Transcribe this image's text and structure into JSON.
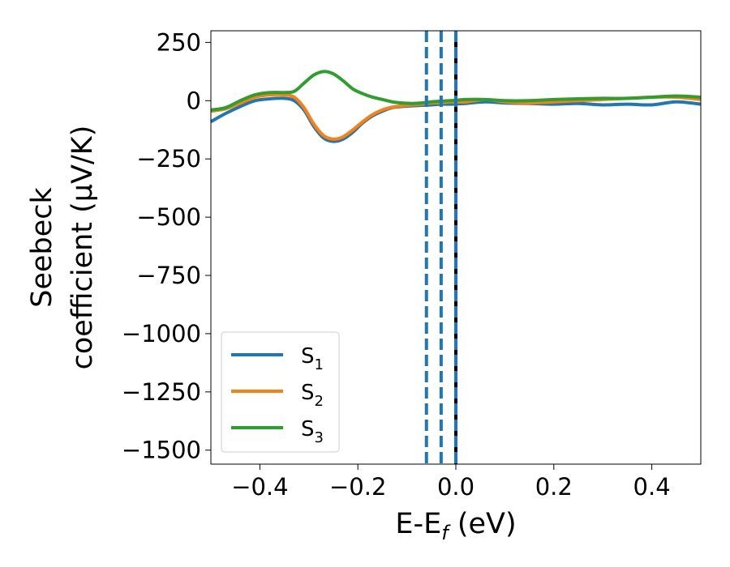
{
  "chart_data": {
    "type": "line",
    "title": "",
    "xlabel": "E-E",
    "xlabel_sub": "f",
    "xlabel_unit": " (eV)",
    "ylabel_line1": "Seebeck",
    "ylabel_line2": "coefficient  (μV/K)",
    "xlim": [
      -0.5,
      0.5
    ],
    "ylim": [
      -1560,
      300
    ],
    "xticks": [
      -0.4,
      -0.2,
      0.0,
      0.2,
      0.4
    ],
    "xtick_labels": [
      "−0.4",
      "−0.2",
      "0.0",
      "0.2",
      "0.4"
    ],
    "yticks": [
      250,
      0,
      -250,
      -500,
      -750,
      -1000,
      -1250,
      -1500
    ],
    "ytick_labels": [
      "250",
      "0",
      "−250",
      "−500",
      "−750",
      "−1000",
      "−1250",
      "−1500"
    ],
    "grid": false,
    "legend_position": "lower-left",
    "series": [
      {
        "name": "S",
        "name_sub": "1",
        "color": "#1f77b4",
        "x": [
          -0.5,
          -0.47,
          -0.44,
          -0.41,
          -0.38,
          -0.35,
          -0.33,
          -0.31,
          -0.29,
          -0.27,
          -0.25,
          -0.23,
          -0.21,
          -0.19,
          -0.17,
          -0.15,
          -0.13,
          -0.11,
          -0.09,
          -0.07,
          -0.05,
          -0.03,
          -0.01,
          0.02,
          0.06,
          0.1,
          0.15,
          0.2,
          0.25,
          0.3,
          0.35,
          0.4,
          0.45,
          0.5
        ],
        "y": [
          -90,
          -55,
          -25,
          0,
          8,
          10,
          0,
          -40,
          -110,
          -160,
          -175,
          -165,
          -135,
          -95,
          -65,
          -45,
          -30,
          -25,
          -22,
          -20,
          -18,
          -15,
          -15,
          -12,
          -5,
          -10,
          -12,
          -15,
          -12,
          -18,
          -15,
          -18,
          -5,
          -15
        ]
      },
      {
        "name": "S",
        "name_sub": "2",
        "color": "#ff7f0e",
        "x": [
          -0.5,
          -0.47,
          -0.44,
          -0.41,
          -0.38,
          -0.35,
          -0.33,
          -0.31,
          -0.29,
          -0.27,
          -0.25,
          -0.23,
          -0.21,
          -0.19,
          -0.17,
          -0.15,
          -0.13,
          -0.11,
          -0.09,
          -0.07,
          -0.05,
          -0.03,
          -0.01,
          0.02,
          0.06,
          0.1,
          0.15,
          0.2,
          0.25,
          0.3,
          0.35,
          0.4,
          0.45,
          0.5
        ],
        "y": [
          -45,
          -35,
          -10,
          15,
          25,
          25,
          15,
          -30,
          -100,
          -150,
          -165,
          -155,
          -125,
          -90,
          -60,
          -40,
          -28,
          -22,
          -18,
          -15,
          -10,
          -8,
          -5,
          -5,
          5,
          -5,
          -10,
          -5,
          0,
          5,
          10,
          15,
          15,
          5
        ]
      },
      {
        "name": "S",
        "name_sub": "3",
        "color": "#2ca02c",
        "x": [
          -0.5,
          -0.47,
          -0.44,
          -0.41,
          -0.38,
          -0.35,
          -0.33,
          -0.31,
          -0.29,
          -0.27,
          -0.25,
          -0.23,
          -0.21,
          -0.19,
          -0.17,
          -0.15,
          -0.13,
          -0.11,
          -0.09,
          -0.07,
          -0.05,
          -0.03,
          -0.01,
          0.02,
          0.06,
          0.1,
          0.15,
          0.2,
          0.25,
          0.3,
          0.35,
          0.4,
          0.45,
          0.5
        ],
        "y": [
          -40,
          -30,
          0,
          25,
          35,
          35,
          40,
          75,
          110,
          125,
          115,
          85,
          50,
          30,
          15,
          5,
          -5,
          -10,
          -12,
          -10,
          -5,
          -2,
          0,
          5,
          5,
          0,
          0,
          5,
          8,
          10,
          10,
          15,
          20,
          15
        ]
      }
    ],
    "vertical_lines": [
      {
        "x": -0.06,
        "color": "#1f77b4",
        "style": "dashed"
      },
      {
        "x": -0.03,
        "color": "#1f77b4",
        "style": "dashed"
      },
      {
        "x": 0.0,
        "color": "#000000",
        "style": "solid"
      },
      {
        "x": 0.0,
        "color": "#1f77b4",
        "style": "dashed"
      }
    ]
  }
}
